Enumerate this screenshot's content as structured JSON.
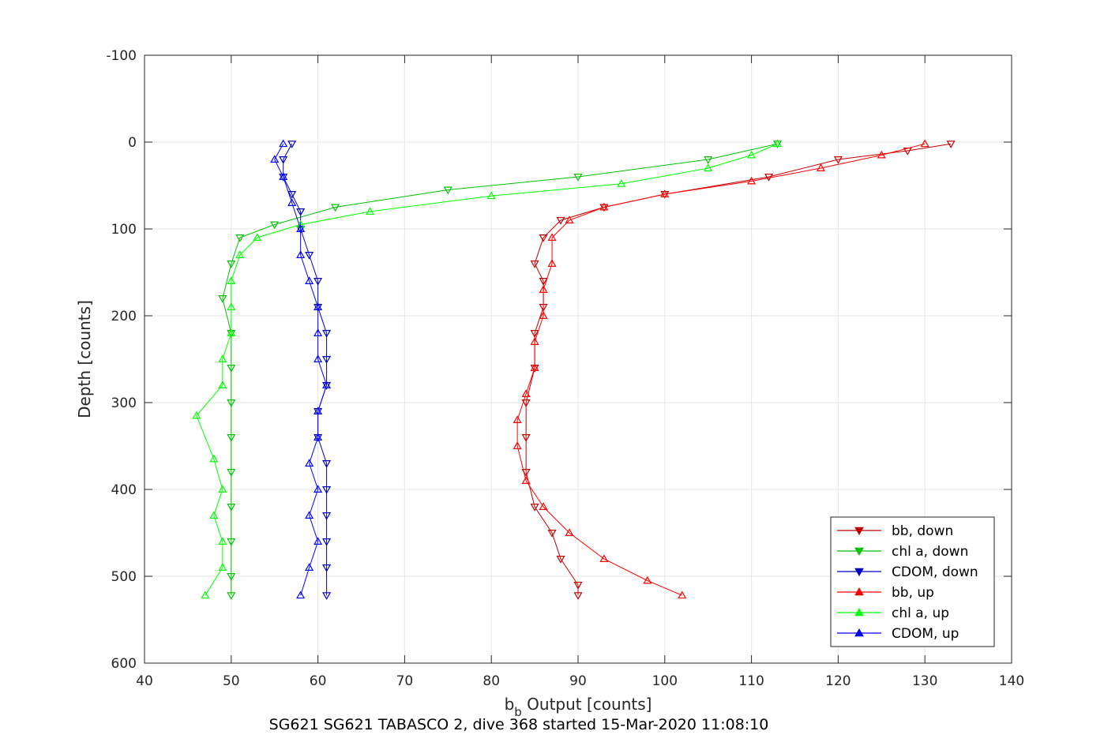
{
  "chart_data": {
    "type": "scatter",
    "title": "SG621 SG621 TABASCO 2, dive 368 started 15-Mar-2020 11:08:10",
    "xlabel_main": "b",
    "xlabel_sub": "b",
    "xlabel_rest": " Output [counts]",
    "ylabel": "Depth [counts]",
    "xlim": [
      40,
      140
    ],
    "ylim": [
      -100,
      600
    ],
    "y_reversed": true,
    "grid": true,
    "legend_position": "bottom-right",
    "xticks": [
      "40",
      "50",
      "60",
      "70",
      "80",
      "90",
      "100",
      "110",
      "120",
      "130",
      "140"
    ],
    "yticks": [
      "-100",
      "0",
      "100",
      "200",
      "300",
      "400",
      "500",
      "600"
    ],
    "series": [
      {
        "name": "bb, down",
        "color": "#c00000",
        "marker": "triangle-down",
        "points": [
          [
            133,
            2
          ],
          [
            128,
            10
          ],
          [
            120,
            20
          ],
          [
            112,
            40
          ],
          [
            100,
            60
          ],
          [
            93,
            75
          ],
          [
            88,
            90
          ],
          [
            86,
            110
          ],
          [
            85,
            140
          ],
          [
            86,
            160
          ],
          [
            86,
            190
          ],
          [
            85,
            220
          ],
          [
            85,
            260
          ],
          [
            84,
            300
          ],
          [
            84,
            340
          ],
          [
            84,
            380
          ],
          [
            85,
            420
          ],
          [
            87,
            450
          ],
          [
            88,
            480
          ],
          [
            90,
            510
          ],
          [
            90,
            522
          ]
        ]
      },
      {
        "name": "chl a, down",
        "color": "#00c000",
        "marker": "triangle-down",
        "points": [
          [
            113,
            2
          ],
          [
            105,
            20
          ],
          [
            90,
            40
          ],
          [
            75,
            55
          ],
          [
            62,
            75
          ],
          [
            55,
            95
          ],
          [
            51,
            110
          ],
          [
            50,
            140
          ],
          [
            49,
            180
          ],
          [
            50,
            220
          ],
          [
            50,
            260
          ],
          [
            50,
            300
          ],
          [
            50,
            340
          ],
          [
            50,
            380
          ],
          [
            50,
            420
          ],
          [
            50,
            460
          ],
          [
            50,
            500
          ],
          [
            50,
            522
          ]
        ]
      },
      {
        "name": "CDOM, down",
        "color": "#0000c0",
        "marker": "triangle-down",
        "points": [
          [
            57,
            2
          ],
          [
            56,
            20
          ],
          [
            56,
            40
          ],
          [
            57,
            60
          ],
          [
            58,
            80
          ],
          [
            58,
            100
          ],
          [
            59,
            130
          ],
          [
            60,
            160
          ],
          [
            60,
            190
          ],
          [
            61,
            220
          ],
          [
            61,
            250
          ],
          [
            61,
            280
          ],
          [
            60,
            310
          ],
          [
            60,
            340
          ],
          [
            61,
            370
          ],
          [
            61,
            400
          ],
          [
            61,
            430
          ],
          [
            61,
            460
          ],
          [
            61,
            490
          ],
          [
            61,
            522
          ]
        ]
      },
      {
        "name": "bb, up",
        "color": "#ff0000",
        "marker": "triangle-up",
        "points": [
          [
            102,
            522
          ],
          [
            98,
            505
          ],
          [
            93,
            480
          ],
          [
            89,
            450
          ],
          [
            86,
            420
          ],
          [
            84,
            390
          ],
          [
            83,
            350
          ],
          [
            83,
            320
          ],
          [
            84,
            290
          ],
          [
            85,
            260
          ],
          [
            85,
            230
          ],
          [
            86,
            200
          ],
          [
            86,
            170
          ],
          [
            87,
            140
          ],
          [
            87,
            110
          ],
          [
            89,
            90
          ],
          [
            93,
            75
          ],
          [
            100,
            60
          ],
          [
            110,
            45
          ],
          [
            118,
            30
          ],
          [
            125,
            15
          ],
          [
            130,
            2
          ]
        ]
      },
      {
        "name": "chl a, up",
        "color": "#00ff00",
        "marker": "triangle-up",
        "points": [
          [
            47,
            522
          ],
          [
            49,
            490
          ],
          [
            49,
            460
          ],
          [
            48,
            430
          ],
          [
            49,
            400
          ],
          [
            48,
            365
          ],
          [
            46,
            315
          ],
          [
            49,
            280
          ],
          [
            49,
            250
          ],
          [
            50,
            220
          ],
          [
            50,
            190
          ],
          [
            50,
            160
          ],
          [
            51,
            130
          ],
          [
            53,
            110
          ],
          [
            58,
            95
          ],
          [
            66,
            80
          ],
          [
            80,
            62
          ],
          [
            95,
            48
          ],
          [
            105,
            30
          ],
          [
            110,
            15
          ],
          [
            113,
            2
          ]
        ]
      },
      {
        "name": "CDOM, up",
        "color": "#0000ff",
        "marker": "triangle-up",
        "points": [
          [
            58,
            522
          ],
          [
            59,
            490
          ],
          [
            60,
            460
          ],
          [
            59,
            430
          ],
          [
            60,
            400
          ],
          [
            59,
            370
          ],
          [
            60,
            340
          ],
          [
            60,
            310
          ],
          [
            61,
            280
          ],
          [
            60,
            250
          ],
          [
            60,
            220
          ],
          [
            60,
            190
          ],
          [
            59,
            160
          ],
          [
            58,
            130
          ],
          [
            58,
            100
          ],
          [
            57,
            70
          ],
          [
            56,
            40
          ],
          [
            55,
            20
          ],
          [
            56,
            2
          ]
        ]
      }
    ]
  }
}
